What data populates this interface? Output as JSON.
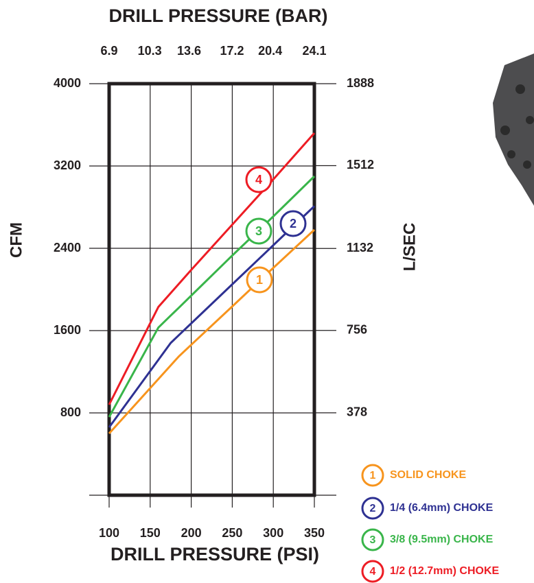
{
  "chart_data": {
    "type": "line",
    "title": "DRILL PRESSURE (BAR)",
    "xlabel": "DRILL PRESSURE (PSI)",
    "ylabel": "CFM",
    "y2label": "L/SEC",
    "x": [
      100,
      150,
      160,
      175,
      185,
      200,
      250,
      300,
      350
    ],
    "xlim": [
      100,
      350
    ],
    "xticks": [
      100,
      150,
      200,
      250,
      300,
      350
    ],
    "x2lim": [
      6.9,
      24.1
    ],
    "x2ticks": [
      6.9,
      10.3,
      13.6,
      17.2,
      20.4,
      24.1
    ],
    "ylim": [
      0,
      4000
    ],
    "yticks": [
      800,
      1600,
      2400,
      3200,
      4000
    ],
    "y2lim": [
      0,
      1888
    ],
    "y2ticks": [
      378,
      756,
      1132,
      1512,
      1888
    ],
    "grid": true,
    "series": [
      {
        "name": "SOLID CHOKE",
        "label": "1",
        "color": "#f7941d",
        "values": [
          600,
          1041,
          1129,
          1262,
          1350,
          1462,
          1835,
          2210,
          2580
        ]
      },
      {
        "name": "1/4 (6.4mm) CHOKE",
        "label": "2",
        "color": "#2e3192",
        "values": [
          660,
          1207,
          1316,
          1480,
          1556,
          1670,
          2050,
          2430,
          2810
        ]
      },
      {
        "name": "3/8 (9.5mm) CHOKE",
        "label": "3",
        "color": "#39b54a",
        "values": [
          760,
          1485,
          1630,
          1746,
          1823,
          1940,
          2330,
          2710,
          3100
        ]
      },
      {
        "name": "1/2 (12.7mm) CHOKE",
        "label": "4",
        "color": "#ed1c24",
        "values": [
          880,
          1672,
          1830,
          1965,
          2055,
          2190,
          2630,
          3070,
          3520
        ]
      }
    ]
  }
}
